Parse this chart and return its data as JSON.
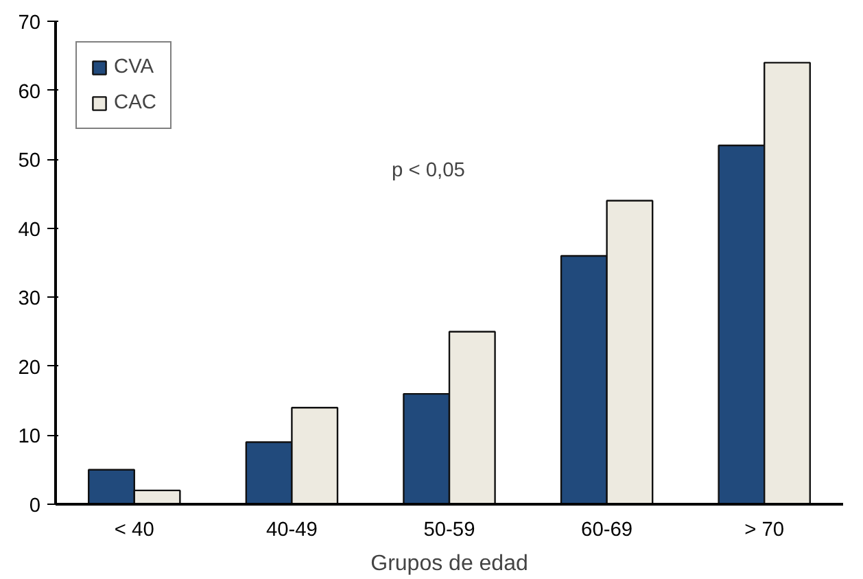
{
  "chart_data": {
    "type": "bar",
    "xlabel": "Grupos de edad",
    "categories": [
      "< 40",
      "40-49",
      "50-59",
      "60-69",
      "> 70"
    ],
    "series": [
      {
        "name": "CVA",
        "color": "#214a7c",
        "values": [
          5,
          9,
          16,
          36,
          52
        ]
      },
      {
        "name": "CAC",
        "color": "#edeae0",
        "values": [
          2,
          14,
          25,
          44,
          64
        ]
      }
    ],
    "ylim": [
      0,
      70
    ],
    "yticks": [
      0,
      10,
      20,
      30,
      40,
      50,
      60,
      70
    ],
    "annotations": [
      "p < 0,05"
    ],
    "legend": "top left",
    "grid": false
  }
}
